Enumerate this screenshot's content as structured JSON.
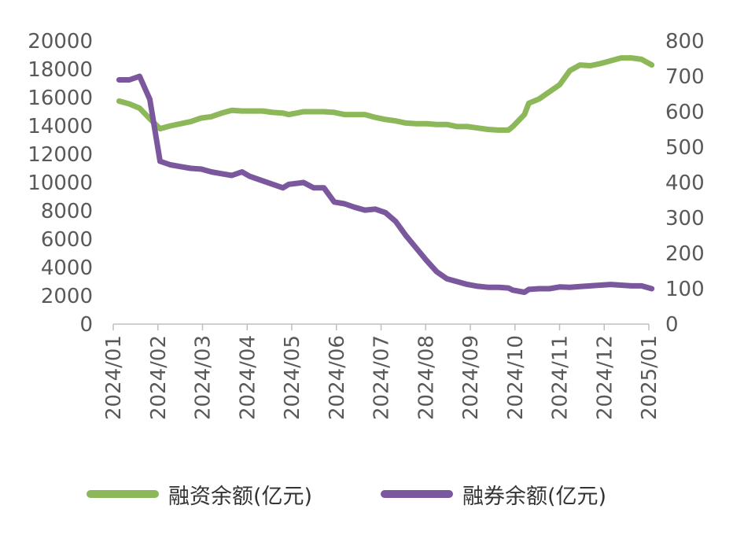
{
  "chart_data": {
    "type": "line",
    "x_ticks": [
      "2024/01",
      "2024/02",
      "2024/03",
      "2024/04",
      "2024/05",
      "2024/06",
      "2024/07",
      "2024/08",
      "2024/09",
      "2024/10",
      "2024/11",
      "2024/12",
      "2025/01"
    ],
    "y_left": {
      "min": 0,
      "max": 20000,
      "ticks": [
        "0",
        "2000",
        "4000",
        "6000",
        "8000",
        "10000",
        "12000",
        "14000",
        "16000",
        "18000",
        "20000"
      ]
    },
    "y_right": {
      "min": 0,
      "max": 800,
      "ticks": [
        "0",
        "100",
        "200",
        "300",
        "400",
        "500",
        "600",
        "700",
        "800"
      ]
    },
    "grid": false,
    "legend_position": "bottom",
    "series": [
      {
        "name": "融资余额(亿元)",
        "axis": "left",
        "color": "#8DB85A",
        "x": [
          "2024-01-05",
          "2024-01-12",
          "2024-01-19",
          "2024-01-26",
          "2024-02-02",
          "2024-02-09",
          "2024-02-23",
          "2024-03-01",
          "2024-03-08",
          "2024-03-15",
          "2024-03-22",
          "2024-03-29",
          "2024-04-03",
          "2024-04-12",
          "2024-04-19",
          "2024-04-26",
          "2024-04-30",
          "2024-05-10",
          "2024-05-17",
          "2024-05-24",
          "2024-05-31",
          "2024-06-07",
          "2024-06-14",
          "2024-06-21",
          "2024-06-28",
          "2024-07-05",
          "2024-07-12",
          "2024-07-19",
          "2024-07-26",
          "2024-08-02",
          "2024-08-09",
          "2024-08-16",
          "2024-08-23",
          "2024-08-30",
          "2024-09-06",
          "2024-09-13",
          "2024-09-20",
          "2024-09-27",
          "2024-09-30",
          "2024-10-08",
          "2024-10-11",
          "2024-10-18",
          "2024-10-25",
          "2024-11-01",
          "2024-11-08",
          "2024-11-15",
          "2024-11-22",
          "2024-11-29",
          "2024-12-06",
          "2024-12-13",
          "2024-12-20",
          "2024-12-27",
          "2025-01-03"
        ],
        "values": [
          15750,
          15550,
          15250,
          14500,
          13800,
          14000,
          14300,
          14550,
          14650,
          14900,
          15100,
          15050,
          15050,
          15050,
          14950,
          14900,
          14800,
          15000,
          15000,
          15000,
          14950,
          14800,
          14800,
          14800,
          14600,
          14450,
          14350,
          14200,
          14150,
          14150,
          14100,
          14100,
          13950,
          13950,
          13850,
          13750,
          13700,
          13700,
          13950,
          14800,
          15600,
          15900,
          16400,
          16900,
          17900,
          18300,
          18250,
          18400,
          18600,
          18800,
          18800,
          18700,
          18300
        ]
      },
      {
        "name": "融券余额(亿元)",
        "axis": "right",
        "color": "#7B579D",
        "x": [
          "2024-01-05",
          "2024-01-12",
          "2024-01-19",
          "2024-01-26",
          "2024-02-02",
          "2024-02-09",
          "2024-02-16",
          "2024-02-23",
          "2024-03-01",
          "2024-03-08",
          "2024-03-15",
          "2024-03-22",
          "2024-03-29",
          "2024-04-03",
          "2024-04-12",
          "2024-04-19",
          "2024-04-26",
          "2024-04-30",
          "2024-05-10",
          "2024-05-17",
          "2024-05-24",
          "2024-05-31",
          "2024-06-07",
          "2024-06-14",
          "2024-06-21",
          "2024-06-28",
          "2024-07-05",
          "2024-07-12",
          "2024-07-19",
          "2024-07-26",
          "2024-08-02",
          "2024-08-09",
          "2024-08-16",
          "2024-08-23",
          "2024-08-30",
          "2024-09-06",
          "2024-09-13",
          "2024-09-20",
          "2024-09-27",
          "2024-09-30",
          "2024-10-08",
          "2024-10-11",
          "2024-10-18",
          "2024-10-25",
          "2024-11-01",
          "2024-11-08",
          "2024-11-15",
          "2024-11-22",
          "2024-11-29",
          "2024-12-06",
          "2024-12-13",
          "2024-12-20",
          "2024-12-27",
          "2025-01-03"
        ],
        "values": [
          690,
          690,
          700,
          635,
          460,
          450,
          445,
          440,
          438,
          430,
          425,
          420,
          430,
          418,
          405,
          395,
          385,
          395,
          400,
          385,
          385,
          345,
          340,
          330,
          322,
          325,
          315,
          290,
          250,
          215,
          180,
          148,
          128,
          120,
          112,
          107,
          104,
          104,
          102,
          96,
          90,
          98,
          100,
          100,
          105,
          104,
          106,
          108,
          110,
          112,
          110,
          108,
          108,
          100
        ]
      }
    ]
  }
}
